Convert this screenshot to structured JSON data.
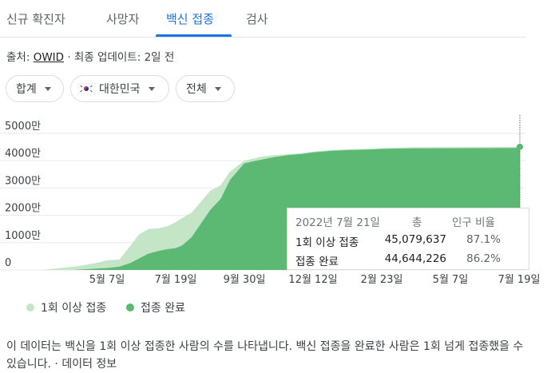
{
  "tabs": [
    {
      "label": "신규 확진자",
      "active": false
    },
    {
      "label": "사망자",
      "active": false
    },
    {
      "label": "백신 접종",
      "active": true
    },
    {
      "label": "검사",
      "active": false
    }
  ],
  "source": {
    "prefix": "출처: ",
    "link": "OWID",
    "suffix": " · 최종 업데이트: 2일 전"
  },
  "filters": {
    "aggregate": "합계",
    "country": "대한민국",
    "country_flag": "south-korea-flag-icon",
    "group": "전체"
  },
  "colors": {
    "first_dose": "#c4e6c7",
    "full": "#5bb974",
    "accent": "#1a73e8"
  },
  "chart_data": {
    "type": "area",
    "y_ticks": [
      "5000만",
      "4000만",
      "3000만",
      "2000만",
      "1000만",
      "0"
    ],
    "x_ticks": [
      "5월 7일",
      "7월 19일",
      "9월 30일",
      "12월 12일",
      "2월 23일",
      "5월 7일",
      "7월 19일"
    ],
    "ylim": [
      0,
      50000000
    ],
    "grid": true,
    "x": [
      "2021-02-26",
      "2021-03-15",
      "2021-04-01",
      "2021-04-15",
      "2021-04-30",
      "2021-05-07",
      "2021-05-20",
      "2021-06-01",
      "2021-06-10",
      "2021-06-20",
      "2021-07-01",
      "2021-07-10",
      "2021-07-19",
      "2021-07-26",
      "2021-08-05",
      "2021-08-15",
      "2021-08-25",
      "2021-09-05",
      "2021-09-15",
      "2021-09-30",
      "2021-10-10",
      "2021-10-20",
      "2021-11-01",
      "2021-11-15",
      "2021-12-01",
      "2021-12-12",
      "2022-01-01",
      "2022-01-20",
      "2022-02-10",
      "2022-02-23",
      "2022-03-15",
      "2022-04-01",
      "2022-05-07",
      "2022-06-01",
      "2022-07-01",
      "2022-07-19",
      "2022-07-21"
    ],
    "series": [
      {
        "name": "1회 이상 접종",
        "values": [
          0,
          600000,
          1200000,
          1900000,
          2900000,
          3600000,
          3800000,
          9000000,
          13000000,
          15000000,
          15300000,
          16000000,
          17500000,
          19000000,
          21000000,
          25000000,
          29000000,
          31000000,
          36000000,
          40000000,
          40800000,
          41600000,
          42000000,
          42400000,
          42800000,
          43300000,
          43900000,
          44200000,
          44400000,
          44600000,
          44800000,
          44900000,
          44950000,
          45000000,
          45050000,
          45070000,
          45079637
        ]
      },
      {
        "name": "접종 완료",
        "values": [
          0,
          0,
          0,
          300000,
          600000,
          700000,
          1200000,
          2600000,
          4200000,
          6000000,
          7000000,
          7600000,
          8000000,
          9000000,
          12000000,
          17000000,
          22000000,
          26000000,
          33000000,
          39000000,
          39800000,
          40500000,
          41300000,
          42000000,
          42500000,
          43000000,
          43600000,
          43900000,
          44100000,
          44300000,
          44450000,
          44500000,
          44550000,
          44580000,
          44620000,
          44640000,
          44644226
        ]
      }
    ]
  },
  "tooltip": {
    "date": "2022년 7월 21일",
    "col_total": "총",
    "col_pct": "인구 비율",
    "rows": [
      {
        "label": "1회 이상 접종",
        "total": "45,079,637",
        "pct": "87.1%"
      },
      {
        "label": "접종 완료",
        "total": "44,644,226",
        "pct": "86.2%"
      }
    ]
  },
  "legend": [
    {
      "label": "1회 이상 접종",
      "color": "#c4e6c7"
    },
    {
      "label": "접종 완료",
      "color": "#5bb974"
    }
  ],
  "description": "이 데이터는 백신을 1회 이상 접종한 사람의 수를 나타냅니다. 백신 접종을 완료한 사람은 1회 넘게 접종했을 수 있습니다. · 데이터 정보"
}
